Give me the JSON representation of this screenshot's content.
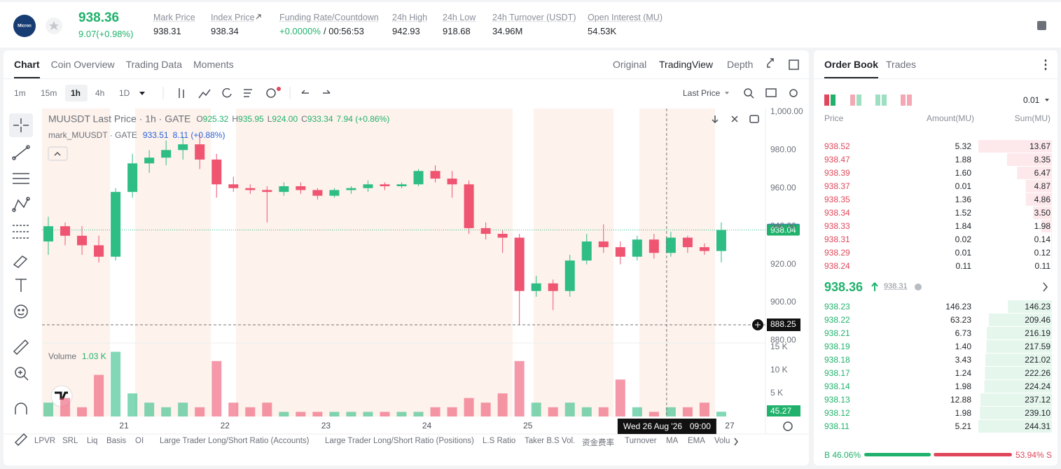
{
  "header": {
    "icon_text": "Micron",
    "price": "938.36",
    "change": "9.07(+0.98%)",
    "stats": [
      {
        "label": "Mark Price",
        "value": "938.31"
      },
      {
        "label": "Index Price",
        "value": "938.34"
      },
      {
        "label": "Funding Rate/Countdown",
        "value": "+0.0000%",
        "value2": "/ 00:56:53"
      },
      {
        "label": "24h High",
        "value": "942.93"
      },
      {
        "label": "24h Low",
        "value": "918.68"
      },
      {
        "label": "24h Turnover (USDT)",
        "value": "34.96M"
      },
      {
        "label": "Open Interest (MU)",
        "value": "54.53K"
      }
    ]
  },
  "tabs": [
    "Chart",
    "Coin Overview",
    "Trading Data",
    "Moments"
  ],
  "views": [
    "Original",
    "TradingView",
    "Depth"
  ],
  "intervals": [
    "1m",
    "15m",
    "1h",
    "4h",
    "1D"
  ],
  "price_type": "Last Price",
  "indicators": [
    "LPVR",
    "SRL",
    "Liq",
    "Basis",
    "OI",
    "Large Trader Long/Short Ratio (Accounts)",
    "Large Trader Long/Short Ratio (Positions)",
    "L.S Ratio",
    "Taker B.S Vol.",
    "资金费率",
    "Turnover",
    "MA",
    "EMA",
    "Volu"
  ],
  "chart_data": {
    "type": "candlestick",
    "title": "MUUSDT Last Price · 1h · GATE",
    "legend": [
      "O",
      "925.32",
      "H",
      "935.95",
      "L",
      "924.00",
      "C",
      "933.34",
      "7.94 (+0.86%)"
    ],
    "mark_title": "mark_MUUSDT · GATE",
    "mark_values": [
      "933.51",
      "8.11 (+0.88%)"
    ],
    "volume_title": "Volume",
    "volume_value": "1.03 K",
    "up_color": "#2ebd85",
    "down_color": "#ef5471",
    "x": [
      6,
      10,
      14,
      18,
      22,
      26,
      30,
      34,
      38,
      42,
      46,
      50,
      54,
      58,
      62,
      66,
      70,
      74,
      78,
      82,
      86,
      90,
      94,
      98,
      102,
      106,
      110,
      114,
      118,
      122,
      126,
      130,
      134,
      138,
      142,
      146,
      150,
      154,
      158,
      162,
      166
    ],
    "open": [
      932,
      940,
      935,
      930,
      924,
      958,
      973,
      976,
      980,
      983,
      975,
      962,
      960,
      959,
      958,
      961,
      959,
      956,
      959,
      960,
      962,
      961,
      962,
      969,
      965,
      962,
      939,
      936,
      934,
      906,
      910,
      906,
      922,
      932,
      929,
      924,
      933,
      926,
      934,
      929,
      927
    ],
    "high": [
      945,
      942,
      940,
      935,
      960,
      978,
      980,
      985,
      987,
      988,
      978,
      966,
      962,
      961,
      963,
      963,
      960,
      960,
      961,
      964,
      963,
      963,
      970,
      972,
      969,
      964,
      942,
      938,
      936,
      914,
      912,
      925,
      936,
      941,
      932,
      935,
      936,
      937,
      935,
      931,
      942
    ],
    "low": [
      925,
      930,
      925,
      921,
      922,
      955,
      968,
      972,
      975,
      970,
      955,
      958,
      957,
      942,
      956,
      957,
      954,
      955,
      957,
      958,
      959,
      960,
      961,
      963,
      955,
      936,
      933,
      926,
      888,
      903,
      896,
      903,
      920,
      926,
      920,
      922,
      923,
      924,
      926,
      925,
      921
    ],
    "close": [
      940,
      935,
      930,
      924,
      958,
      973,
      976,
      980,
      983,
      975,
      962,
      960,
      959,
      958,
      961,
      959,
      956,
      959,
      960,
      962,
      961,
      962,
      969,
      965,
      962,
      939,
      936,
      934,
      906,
      910,
      906,
      922,
      932,
      929,
      924,
      933,
      926,
      934,
      929,
      927,
      938
    ],
    "volume": [
      3,
      4,
      2,
      9,
      14,
      5,
      3,
      2,
      3,
      2,
      12,
      3,
      2,
      3,
      1,
      1,
      1,
      1,
      1,
      1,
      1,
      1,
      1,
      2,
      2,
      4,
      3,
      5,
      12,
      3,
      2,
      3,
      2,
      2,
      8,
      2,
      1,
      2,
      2,
      3,
      1.03
    ],
    "xlim": [
      4.5,
      176.5
    ],
    "xticks": [
      {
        "value": 24,
        "label": "21"
      },
      {
        "value": 48,
        "label": "22"
      },
      {
        "value": 72,
        "label": "23"
      },
      {
        "value": 96,
        "label": "24"
      },
      {
        "value": 120,
        "label": "25"
      },
      {
        "value": 168,
        "label": "27"
      }
    ],
    "ylim": [
      878.7,
      1001.8
    ],
    "yticks": [
      {
        "value": 1000,
        "label": "1,000.00"
      },
      {
        "value": 980,
        "label": "980.00"
      },
      {
        "value": 960,
        "label": "960.00"
      },
      {
        "value": 940,
        "label": "940.00"
      },
      {
        "value": 920,
        "label": "920.00"
      },
      {
        "value": 900,
        "label": "900.00"
      },
      {
        "value": 880,
        "label": "880.00"
      }
    ],
    "y2lim": [
      0,
      15.9
    ],
    "y2ticks": [
      {
        "value": 5,
        "label": "5 K"
      },
      {
        "value": 10,
        "label": "10 K"
      },
      {
        "value": 15,
        "label": "15 K"
      }
    ],
    "last_price": 938.04,
    "mark_price": 938.31,
    "crosshair_price": 888.25,
    "crosshair_x": 153,
    "crosshair_date": "Wed 26 Aug '26",
    "crosshair_time": "09:00",
    "crosshair_volume": "45.27",
    "grid": false
  },
  "order_book": {
    "tabs": [
      "Order Book",
      "Trades"
    ],
    "precision": "0.01",
    "headers": [
      "Price",
      "Amount(MU)",
      "Sum(MU)"
    ],
    "asks": [
      [
        "938.52",
        "5.32",
        "13.67"
      ],
      [
        "938.47",
        "1.88",
        "8.35"
      ],
      [
        "938.39",
        "1.60",
        "6.47"
      ],
      [
        "938.37",
        "0.01",
        "4.87"
      ],
      [
        "938.35",
        "1.36",
        "4.86"
      ],
      [
        "938.34",
        "1.52",
        "3.50"
      ],
      [
        "938.33",
        "1.84",
        "1.98"
      ],
      [
        "938.31",
        "0.02",
        "0.14"
      ],
      [
        "938.29",
        "0.01",
        "0.12"
      ],
      [
        "938.24",
        "0.11",
        "0.11"
      ]
    ],
    "last": "938.36",
    "mark": "938.31",
    "bids": [
      [
        "938.23",
        "146.23",
        "146.23"
      ],
      [
        "938.22",
        "63.23",
        "209.46"
      ],
      [
        "938.21",
        "6.73",
        "216.19"
      ],
      [
        "938.19",
        "1.40",
        "217.59"
      ],
      [
        "938.18",
        "3.43",
        "221.02"
      ],
      [
        "938.17",
        "1.24",
        "222.26"
      ],
      [
        "938.14",
        "1.98",
        "224.24"
      ],
      [
        "938.13",
        "12.88",
        "237.12"
      ],
      [
        "938.12",
        "1.98",
        "239.10"
      ],
      [
        "938.11",
        "5.21",
        "244.31"
      ]
    ],
    "buy_pct": 46.06,
    "buy_label": "B 46.06%",
    "sell_pct": 53.94,
    "sell_label": "53.94% S"
  }
}
